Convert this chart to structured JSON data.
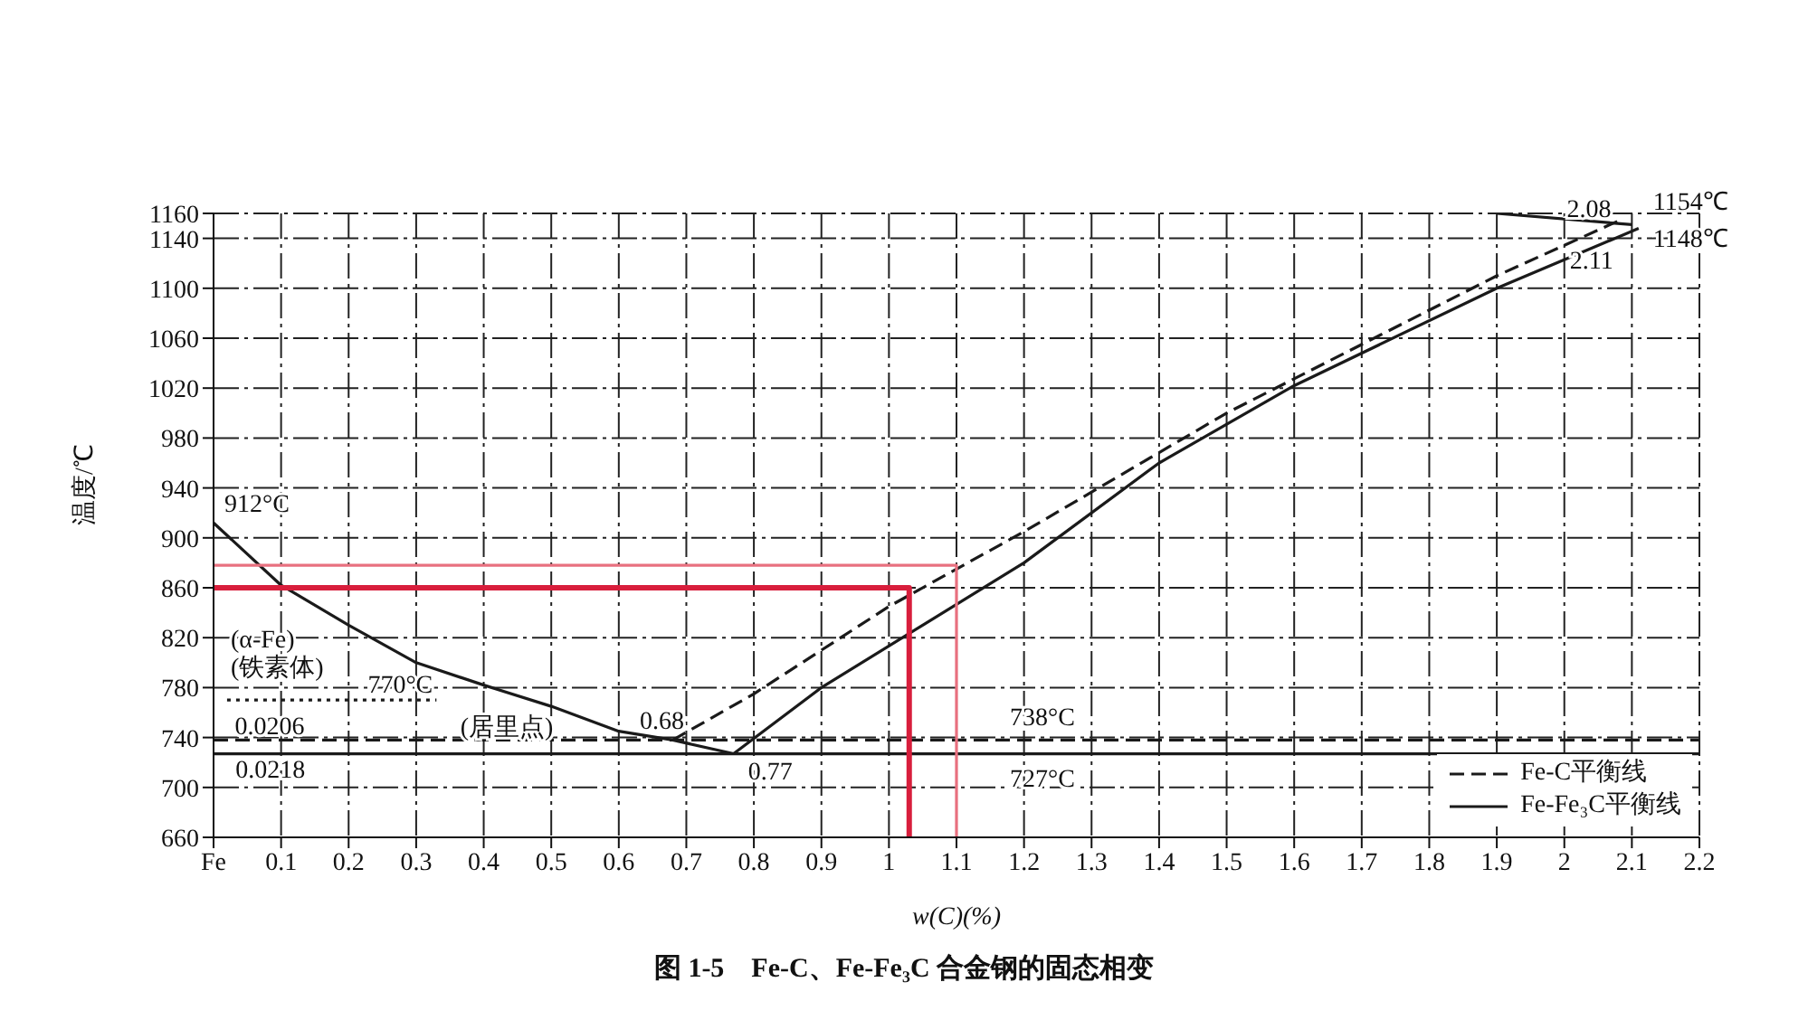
{
  "chart_data": {
    "type": "line",
    "title": "图 1-5　Fe-C、Fe-Fe₃C 合金钢的固态相变",
    "xlabel": "w(C)(%)",
    "ylabel": "温度/℃",
    "xlim": [
      0,
      2.2
    ],
    "xticks": [
      {
        "value": 0,
        "label": "Fe"
      },
      0.1,
      0.2,
      0.3,
      0.4,
      0.5,
      0.6,
      0.7,
      0.8,
      0.9,
      1.0,
      1.1,
      1.2,
      1.3,
      1.4,
      1.5,
      1.6,
      1.7,
      1.8,
      1.9,
      2.0,
      2.1,
      2.2
    ],
    "ylim": [
      660,
      1160
    ],
    "yticks": [
      660,
      700,
      740,
      780,
      820,
      860,
      900,
      940,
      980,
      1020,
      1060,
      1100,
      1140,
      1160
    ],
    "grid": true,
    "legend": "bottom right",
    "series": [
      {
        "name": "Fe-C平衡线",
        "color": "#1a1a1a",
        "line_style": "dashed",
        "x": [
          0.68,
          0.8,
          1.0,
          1.2,
          1.5,
          1.9,
          2.08
        ],
        "values": [
          738,
          775,
          845,
          905,
          1000,
          1110,
          1154
        ]
      },
      {
        "name": "Fe-Fe₃C平衡线",
        "color": "#1a1a1a",
        "line_style": "solid",
        "x": [
          0.77,
          0.9,
          1.05,
          1.2,
          1.4,
          1.6,
          1.9,
          2.11
        ],
        "values": [
          727,
          780,
          830,
          880,
          960,
          1022,
          1100,
          1148
        ]
      },
      {
        "color": "#1a1a1a",
        "line_style": "solid",
        "x": [
          0,
          0.1,
          0.2,
          0.3,
          0.4,
          0.5,
          0.6,
          0.68,
          0.77
        ],
        "values": [
          912,
          862,
          830,
          800,
          782,
          765,
          745,
          738,
          727
        ]
      },
      {
        "color": "#1a1a1a",
        "line_style": "solid",
        "x": [
          1.9,
          2.1
        ],
        "values": [
          1160,
          1151
        ]
      },
      {
        "color": "#1a1a1a",
        "line_style": "dotted",
        "x": [
          0.02,
          0.33
        ],
        "values": [
          770,
          770
        ]
      },
      {
        "color": "#d81e3c",
        "line_style": "solid",
        "x": [
          0,
          1.03,
          1.03
        ],
        "values": [
          860,
          860,
          660
        ]
      },
      {
        "color": "#e8707f",
        "line_style": "solid",
        "x": [
          0,
          1.1,
          1.1
        ],
        "values": [
          878,
          878,
          660
        ]
      }
    ],
    "ref_lines": [
      {
        "axis": "y",
        "value": 738,
        "label": "738°C",
        "line_style": "dashed",
        "color": "#1a1a1a"
      },
      {
        "axis": "y",
        "value": 727,
        "label": "727°C",
        "line_style": "solid",
        "color": "#1a1a1a"
      }
    ],
    "annotations": [
      {
        "text": "912°C",
        "x": 0,
        "y": 912
      },
      {
        "text": "770°C",
        "x": 0.33,
        "y": 770
      },
      {
        "text": "0.0206",
        "x": 0.0206,
        "y": 738
      },
      {
        "text": "0.0218",
        "x": 0.0218,
        "y": 727
      },
      {
        "text": "0.68",
        "x": 0.68,
        "y": 738
      },
      {
        "text": "0.77",
        "x": 0.77,
        "y": 727
      },
      {
        "text": "2.08",
        "x": 2.08,
        "y": 1154
      },
      {
        "text": "2.11",
        "x": 2.11,
        "y": 1148
      },
      {
        "text": "1154℃",
        "x": 2.11,
        "y": 1154
      },
      {
        "text": "1148℃",
        "x": 2.11,
        "y": 1148
      },
      "(α-Fe)",
      "(铁素体)",
      "(居里点)"
    ]
  }
}
